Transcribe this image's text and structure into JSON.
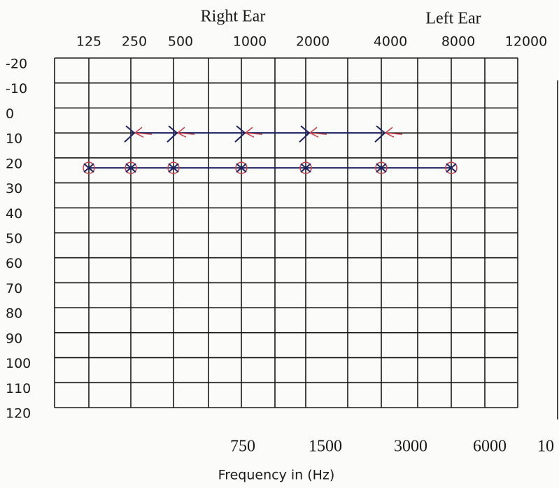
{
  "chart_data": {
    "type": "line",
    "headings": [
      "Right Ear",
      "Left Ear"
    ],
    "x_label": "Frequency in (Hz)",
    "categories": [
      "125",
      "250",
      "500",
      "1000",
      "2000",
      "4000",
      "8000",
      "12000"
    ],
    "secondary_categories": [
      "750",
      "1500",
      "3000",
      "6000",
      "10"
    ],
    "series": [
      {
        "color": "#1c2260",
        "marker_color": "#c8404a",
        "marker": "x-arrow",
        "values": [
          null,
          10,
          10,
          10,
          10,
          10,
          null,
          null
        ]
      },
      {
        "color": "#1c2260",
        "marker_color": "#c8404a",
        "marker": "circle-x",
        "values": [
          24,
          24,
          24,
          24,
          24,
          24,
          24,
          null
        ]
      }
    ],
    "ylim": [
      -20,
      120
    ],
    "yticks": [
      -20,
      -10,
      0,
      10,
      20,
      30,
      40,
      50,
      60,
      70,
      80,
      90,
      100,
      110,
      120
    ],
    "grid": true
  }
}
